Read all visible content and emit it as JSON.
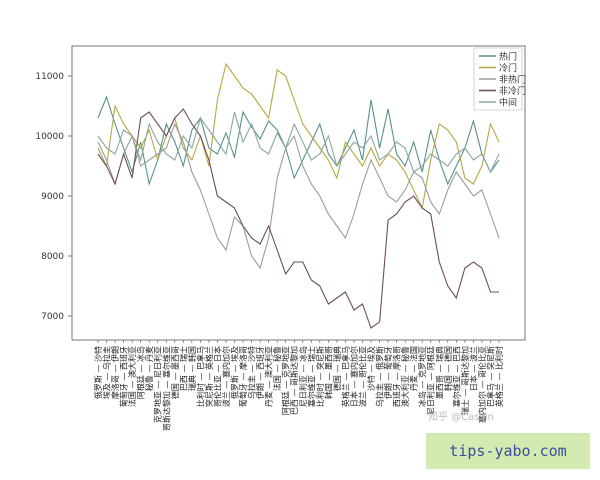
{
  "chart_data": {
    "type": "line",
    "yticks": [
      7000,
      8000,
      9000,
      10000,
      11000
    ],
    "ylim": [
      6600,
      11500
    ],
    "legend_position": "top-right",
    "categories": [
      "俄罗斯 — 沙特",
      "埃及 — 乌拉圭",
      "摩洛哥 — 伊朗",
      "葡萄牙 — 西班牙",
      "法国 — 澳大利亚",
      "阿根廷 — 冰岛",
      "秘鲁 — 丹麦",
      "克罗地亚 — 尼日利亚",
      "哥斯达黎加 — 塞尔维亚",
      "德国 — 墨西哥",
      "巴西 — 瑞士",
      "瑞典 — 韩国",
      "比利时 — 巴拿马",
      "突尼斯 — 英格兰",
      "哥伦比亚 — 日本",
      "波兰 — 塞内加尔",
      "俄罗斯 — 埃及",
      "葡萄牙 — 摩洛哥",
      "乌拉圭 — 沙特",
      "伊朗 — 西班牙",
      "丹麦 — 澳大利亚",
      "法国 — 秘鲁",
      "阿根廷 — 克罗地亚",
      "巴西 — 哥斯达黎加",
      "尼日利亚 — 冰岛",
      "塞尔维亚 — 瑞士",
      "比利时 — 突尼斯",
      "韩国 — 墨西哥",
      "德国 — 瑞典",
      "英格兰 — 巴拿马",
      "日本 — 塞内加尔",
      "波兰 — 哥伦比亚",
      "沙特 — 埃及",
      "乌拉圭 — 俄罗斯",
      "伊朗 — 葡萄牙",
      "西班牙 — 摩洛哥",
      "澳大利亚 — 秘鲁",
      "丹麦 — 法国",
      "冰岛 — 克罗地亚",
      "尼日利亚 — 阿根廷",
      "墨西哥 — 瑞典",
      "韩国 — 德国",
      "塞尔维亚 — 巴西",
      "瑞士 — 哥斯达黎加",
      "日本 — 波兰",
      "塞内加尔 — 哥伦比亚",
      "巴拿马 — 突尼斯",
      "英格兰 — 比利时"
    ],
    "series": [
      {
        "name": "热门",
        "color": "#5a8f8f",
        "values": [
          10300,
          10650,
          10200,
          9800,
          9400,
          9900,
          9200,
          9600,
          10200,
          9900,
          9500,
          10100,
          10300,
          9800,
          9700,
          10050,
          9650,
          10400,
          10150,
          9950,
          10250,
          10100,
          9800,
          9300,
          9600,
          9900,
          10200,
          9700,
          9500,
          9800,
          10100,
          9600,
          10600,
          9800,
          10450,
          9700,
          9500,
          9900,
          9400,
          10100,
          9600,
          9200,
          9500,
          9800,
          10250,
          9700,
          9400,
          9600
        ]
      },
      {
        "name": "冷门",
        "color": "#b3a84a",
        "values": [
          9800,
          9500,
          10500,
          10200,
          10000,
          9800,
          10100,
          9600,
          10000,
          10300,
          9800,
          9600,
          10000,
          9500,
          10600,
          11200,
          11000,
          10800,
          10700,
          10500,
          10300,
          11100,
          11000,
          10600,
          10200,
          10000,
          9800,
          9600,
          9300,
          9900,
          9700,
          9500,
          9800,
          9500,
          9700,
          9600,
          9400,
          9100,
          8800,
          9600,
          10200,
          10100,
          9900,
          9300,
          9200,
          9500,
          10200,
          9900
        ]
      },
      {
        "name": "非热门",
        "color": "#9c9c9c",
        "values": [
          9900,
          9600,
          9200,
          9700,
          10000,
          9500,
          9600,
          9700,
          9800,
          10200,
          9900,
          9400,
          9100,
          8700,
          8300,
          8100,
          8650,
          8500,
          8000,
          7800,
          8300,
          9300,
          9800,
          10000,
          9500,
          9200,
          9000,
          8700,
          8500,
          8300,
          8700,
          9200,
          9600,
          9300,
          9000,
          8900,
          9100,
          9400,
          9300,
          8900,
          8700,
          9100,
          9400,
          9200,
          9000,
          9100,
          8700,
          8300
        ]
      },
      {
        "name": "非冷门",
        "color": "#6f4e57",
        "values": [
          9700,
          9500,
          9200,
          9700,
          9300,
          10300,
          10400,
          10200,
          10000,
          10300,
          10450,
          10200,
          10000,
          9600,
          9000,
          8900,
          8800,
          8500,
          8300,
          8200,
          8500,
          8100,
          7700,
          7900,
          7900,
          7600,
          7500,
          7200,
          7300,
          7400,
          7100,
          7200,
          6800,
          6900,
          8600,
          8700,
          8900,
          9000,
          8800,
          8700,
          7900,
          7500,
          7300,
          7800,
          7900,
          7800,
          7400,
          7400
        ]
      },
      {
        "name": "中间",
        "color": "#8aa89a",
        "values": [
          10000,
          9800,
          9700,
          10100,
          10000,
          9600,
          10200,
          9900,
          9700,
          9600,
          10000,
          9800,
          10300,
          10100,
          9900,
          9700,
          10400,
          9900,
          10200,
          9800,
          9700,
          10050,
          9800,
          10200,
          9900,
          9600,
          9700,
          10000,
          9500,
          9700,
          9900,
          9800,
          10000,
          9600,
          9700,
          9900,
          9800,
          9400,
          9500,
          9700,
          9600,
          9500,
          9700,
          9800,
          9600,
          9700,
          9400,
          9700
        ]
      }
    ]
  },
  "watermark": "知乎 @Cassin",
  "banner": {
    "text": "tips-yabo.com",
    "color": "#d3ebb0"
  }
}
